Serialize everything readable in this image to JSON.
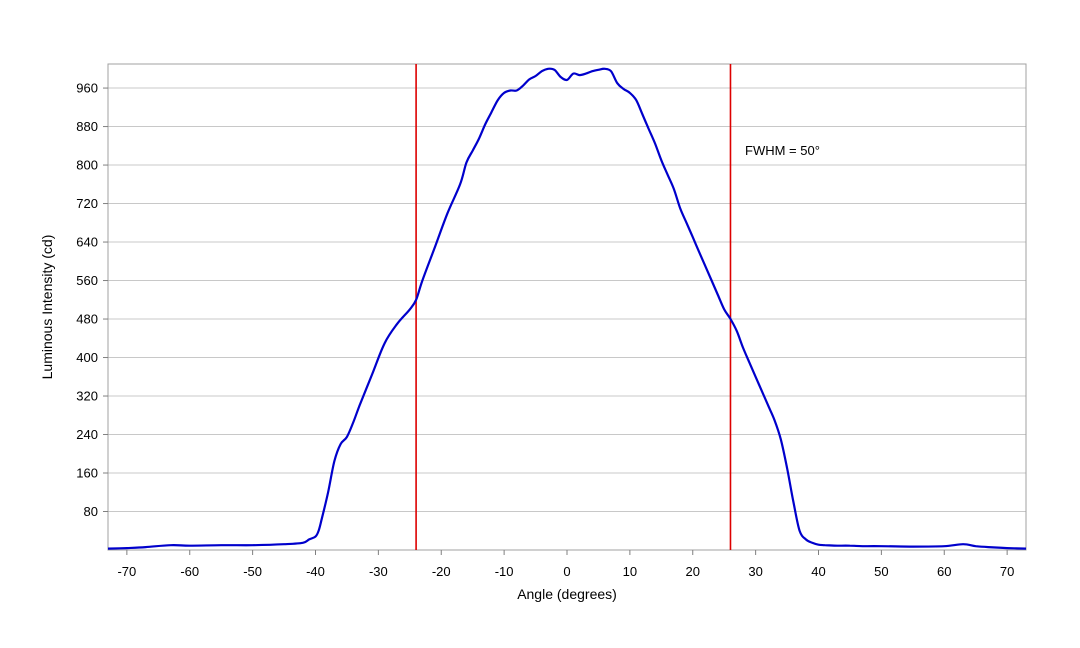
{
  "chart_data": {
    "type": "line",
    "xlabel": "Angle (degrees)",
    "ylabel": "Luminous Intensity (cd)",
    "xlim": [
      -73,
      73
    ],
    "ylim": [
      0,
      1010
    ],
    "xticks": [
      -70,
      -60,
      -50,
      -40,
      -30,
      -20,
      -10,
      0,
      10,
      20,
      30,
      40,
      50,
      60,
      70
    ],
    "yticks": [
      80,
      160,
      240,
      320,
      400,
      480,
      560,
      640,
      720,
      800,
      880,
      960
    ],
    "grid": "horizontal",
    "annotation": "FWHM = 50°",
    "markers": [
      -24,
      26
    ],
    "colors": {
      "series": "#0000cc",
      "markers": "#dd0000",
      "grid": "#c8c8c8",
      "frame": "#a0a0a0"
    },
    "series": [
      {
        "x": [
          -73,
          -70,
          -67,
          -63,
          -60,
          -55,
          -50,
          -45,
          -42,
          -41,
          -40,
          -39.5,
          -39,
          -38,
          -37,
          -36,
          -35,
          -34,
          -33,
          -31,
          -29,
          -27,
          -25,
          -24,
          -23,
          -21,
          -19,
          -17,
          -16,
          -15,
          -14,
          -13,
          -12,
          -11,
          -10,
          -9,
          -8,
          -7,
          -6,
          -5,
          -4,
          -3,
          -2,
          -1,
          0,
          1,
          2,
          3,
          4,
          5,
          6,
          7,
          8,
          9,
          10,
          11,
          12,
          13,
          14,
          15,
          16,
          17,
          18,
          19,
          20,
          21,
          22,
          23,
          24,
          25,
          26,
          27,
          28,
          29,
          30,
          31,
          32,
          33,
          34,
          35,
          36,
          37,
          38,
          39,
          40,
          41,
          43,
          45,
          47,
          50,
          55,
          60,
          63,
          65,
          67,
          70,
          73
        ],
        "y": [
          3,
          4,
          6,
          10,
          9,
          10,
          10,
          12,
          15,
          22,
          28,
          40,
          65,
          120,
          185,
          220,
          235,
          265,
          300,
          365,
          430,
          470,
          500,
          520,
          560,
          630,
          700,
          760,
          805,
          830,
          855,
          885,
          910,
          935,
          950,
          955,
          955,
          965,
          978,
          985,
          995,
          1000,
          998,
          983,
          977,
          990,
          987,
          990,
          995,
          998,
          1000,
          995,
          970,
          958,
          950,
          935,
          905,
          875,
          845,
          810,
          780,
          750,
          710,
          680,
          650,
          620,
          590,
          560,
          530,
          500,
          480,
          455,
          420,
          390,
          360,
          330,
          300,
          270,
          230,
          170,
          100,
          40,
          22,
          15,
          11,
          10,
          9,
          9,
          8,
          8,
          7,
          8,
          12,
          8,
          6,
          4,
          3
        ]
      }
    ]
  }
}
